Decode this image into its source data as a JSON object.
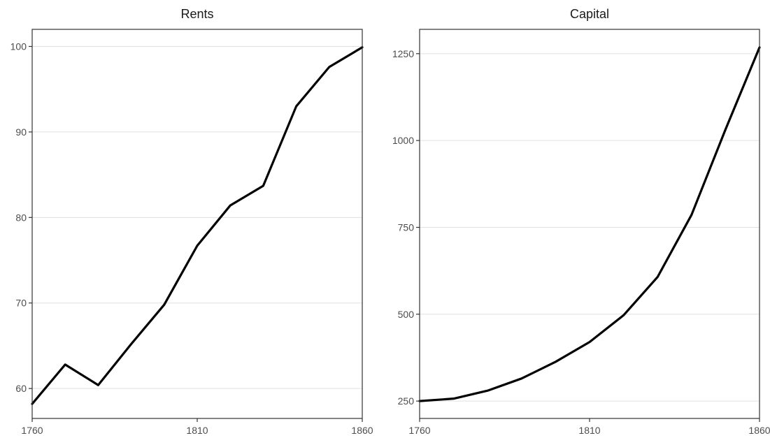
{
  "chart_data": [
    {
      "type": "line",
      "title": "Rents",
      "x": [
        1760,
        1770,
        1780,
        1790,
        1800,
        1810,
        1820,
        1830,
        1840,
        1850,
        1860
      ],
      "y": [
        58.2,
        62.8,
        60.4,
        65.2,
        69.8,
        76.7,
        81.4,
        83.7,
        93.0,
        97.6,
        99.9
      ],
      "xlim": [
        1760,
        1860
      ],
      "ylim": [
        56.5,
        102
      ],
      "xticks": [
        1760,
        1810,
        1860
      ],
      "yticks": [
        60,
        70,
        80,
        90,
        100
      ],
      "xtick_labels": [
        "1760",
        "1810",
        "1860"
      ],
      "ytick_labels": [
        "60",
        "70",
        "80",
        "90",
        "100"
      ],
      "grid": true,
      "color": "#000000"
    },
    {
      "type": "line",
      "title": "Capital",
      "x": [
        1760,
        1770,
        1780,
        1790,
        1800,
        1810,
        1820,
        1830,
        1840,
        1850,
        1860
      ],
      "y": [
        250,
        257,
        280,
        315,
        363,
        420,
        497,
        607,
        786,
        1032,
        1268
      ],
      "xlim": [
        1760,
        1860
      ],
      "ylim": [
        200,
        1320
      ],
      "xticks": [
        1760,
        1810,
        1860
      ],
      "yticks": [
        250,
        500,
        750,
        1000,
        1250
      ],
      "xtick_labels": [
        "1760",
        "1810",
        "1860"
      ],
      "ytick_labels": [
        "250",
        "500",
        "750",
        "1000",
        "1250"
      ],
      "grid": true,
      "color": "#000000"
    }
  ]
}
